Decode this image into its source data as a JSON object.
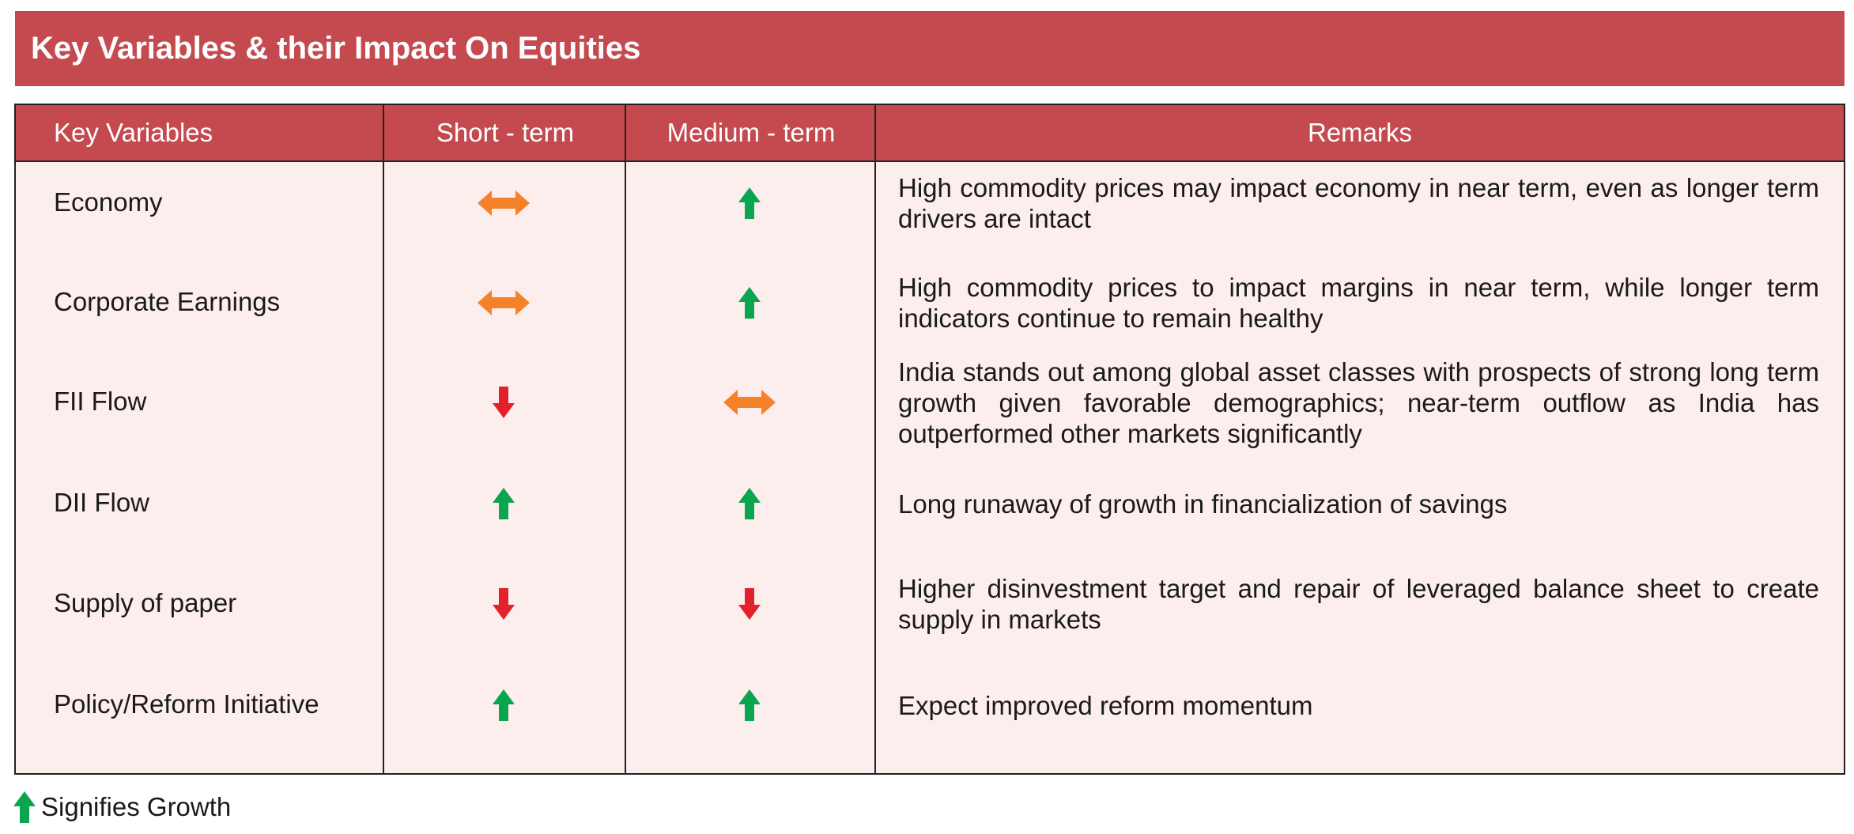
{
  "title": "Key Variables & their Impact On Equities",
  "columns": [
    "Key Variables",
    "Short  - term",
    "Medium - term",
    "Remarks"
  ],
  "rows": [
    {
      "variable": "Economy",
      "short_icon": "horizontal-double-arrow-icon",
      "medium_icon": "up-arrow-icon",
      "remark": "High commodity prices may impact economy in near term, even as longer term drivers are intact"
    },
    {
      "variable": "Corporate Earnings",
      "short_icon": "horizontal-double-arrow-icon",
      "medium_icon": "up-arrow-icon",
      "remark": "High commodity prices to impact margins in near term, while longer term indicators continue to remain healthy"
    },
    {
      "variable": "FII Flow",
      "short_icon": "down-arrow-icon",
      "medium_icon": "horizontal-double-arrow-icon",
      "remark": "India stands out among global asset classes with prospects of strong long term growth given favorable demographics; near-term outflow as India has outperformed other markets significantly"
    },
    {
      "variable": "DII Flow",
      "short_icon": "up-arrow-icon",
      "medium_icon": "up-arrow-icon",
      "remark": "Long runaway of growth in financialization of savings"
    },
    {
      "variable": "Supply of paper",
      "short_icon": "down-arrow-icon",
      "medium_icon": "down-arrow-icon",
      "remark": "Higher disinvestment target and repair of leveraged balance sheet to create supply in markets"
    },
    {
      "variable": "Policy/Reform Initiative",
      "short_icon": "up-arrow-icon",
      "medium_icon": "up-arrow-icon",
      "remark": "Expect improved reform momentum"
    }
  ],
  "legend": {
    "icon": "up-arrow-icon",
    "text": "Signifies Growth"
  },
  "colors": {
    "header": "#c44a4f",
    "body": "#fdeeee",
    "up": "#0aa54f",
    "down": "#e3212a",
    "neutral": "#f5822a"
  }
}
